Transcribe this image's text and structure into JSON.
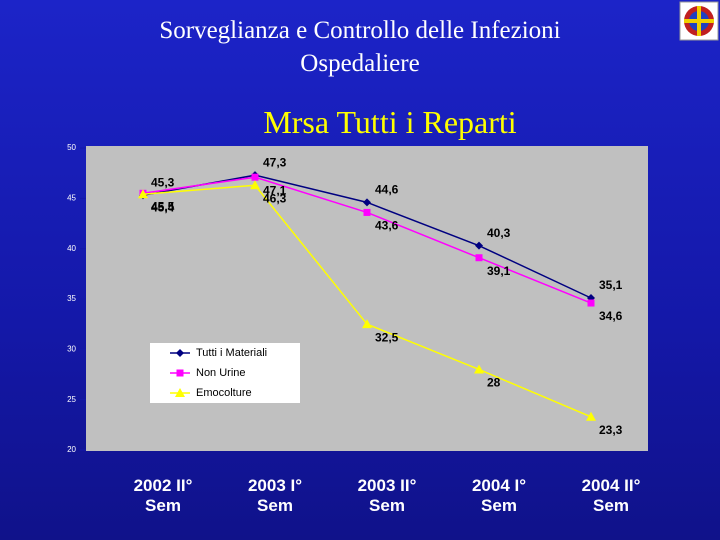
{
  "slide_title": "Sorveglianza e Controllo delle Infezioni Ospedaliere",
  "chart_data": {
    "type": "line",
    "title": "Mrsa Tutti i Reparti",
    "categories": [
      "2002 II° Sem",
      "2003 I° Sem",
      "2003 II° Sem",
      "2004 I° Sem",
      "2004 II° Sem"
    ],
    "series": [
      {
        "name": "Tutti i Materiali",
        "color": "#000080",
        "marker": "diamond",
        "values": [
          45.3,
          47.3,
          44.6,
          40.3,
          35.1
        ],
        "value_labels": [
          "45,3",
          "47,3",
          "44,6",
          "40,3",
          "35,1"
        ]
      },
      {
        "name": "Non Urine",
        "color": "#ff00ff",
        "marker": "square",
        "values": [
          45.5,
          47.1,
          43.6,
          39.1,
          34.6
        ],
        "value_labels": [
          "45,5",
          "47,1",
          "43,6",
          "39,1",
          "34,6"
        ]
      },
      {
        "name": "Emocolture",
        "color": "#ffff00",
        "marker": "triangle",
        "values": [
          45.4,
          46.3,
          32.5,
          28,
          23.3
        ],
        "value_labels": [
          "45,4",
          "46,3",
          "32,5",
          "28",
          "23,3"
        ]
      }
    ],
    "ylim": [
      20,
      50
    ],
    "yticks": [
      20,
      25,
      30,
      35,
      40,
      45,
      50
    ]
  }
}
